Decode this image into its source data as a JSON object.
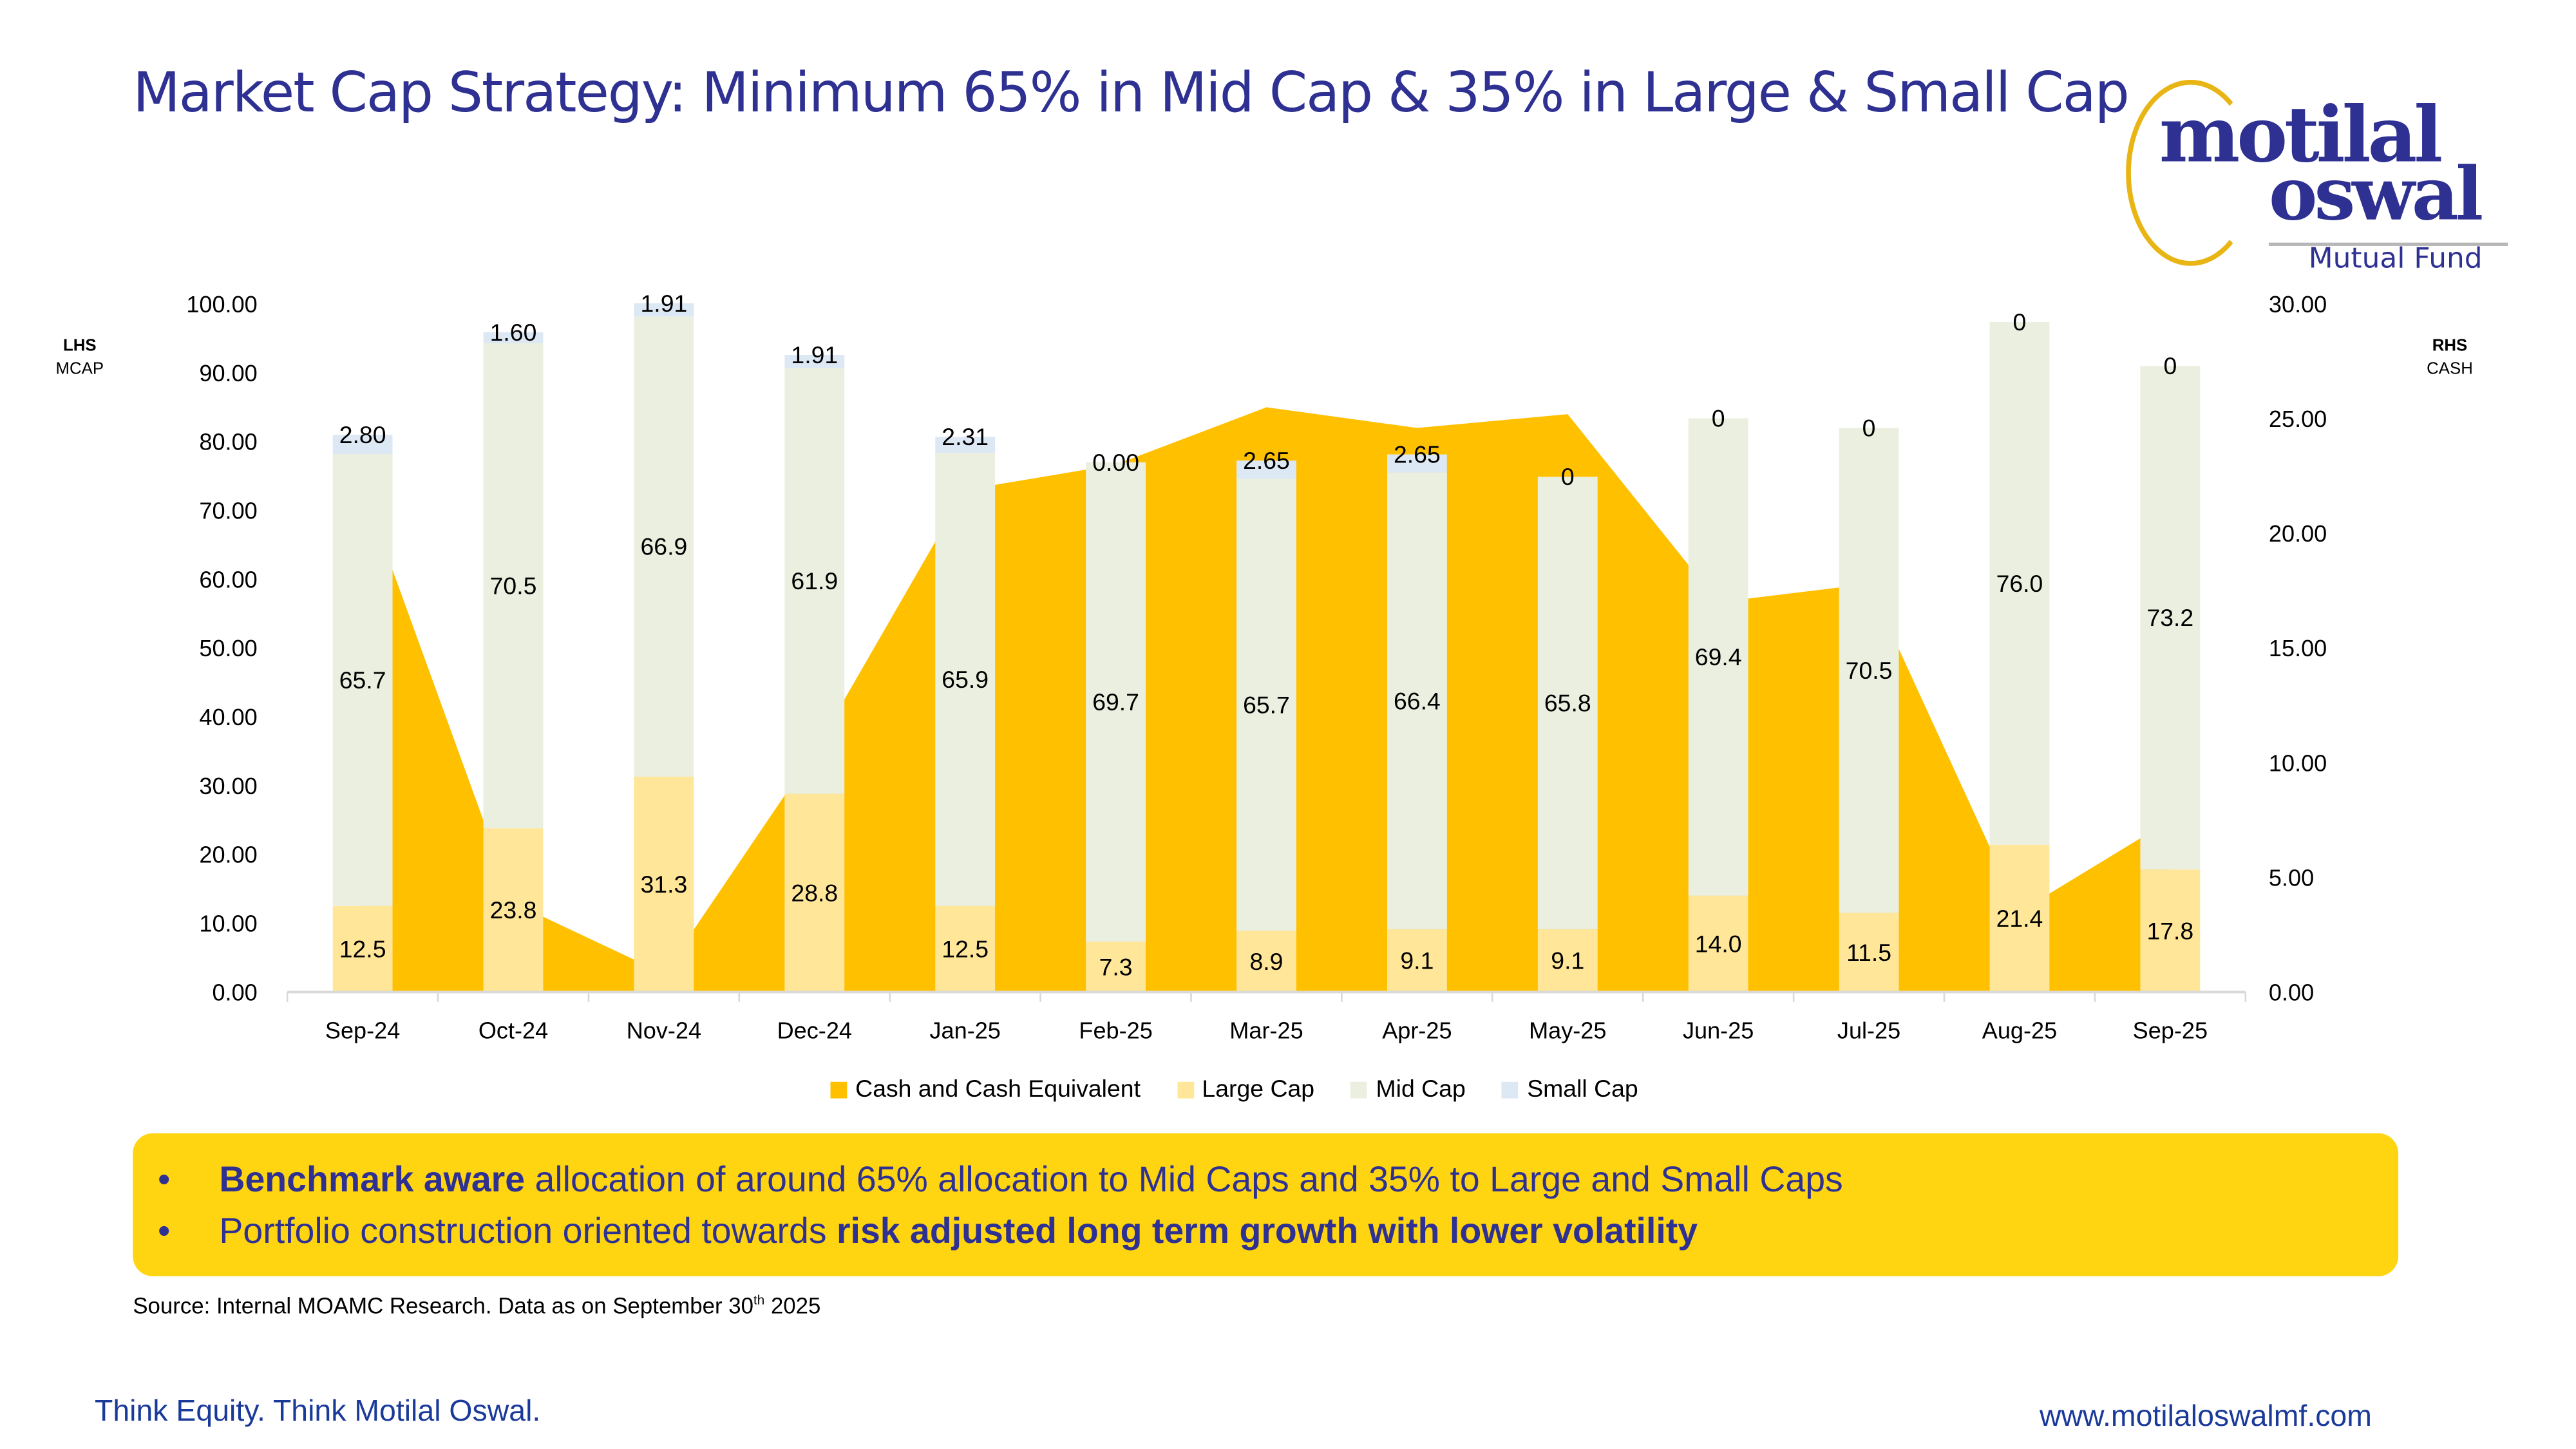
{
  "page": {
    "title": "Market Cap Strategy: Minimum 65% in Mid Cap & 35% in Large & Small Cap",
    "logo": {
      "line1": "motilal",
      "line2": "oswal",
      "line3": "Mutual Fund"
    },
    "lhs_caption": {
      "bold": "LHS",
      "text": "MCAP"
    },
    "rhs_caption": {
      "bold": "RHS",
      "text": "CASH"
    },
    "callout": {
      "bullet": "•",
      "items": [
        {
          "bold": "Benchmark aware",
          "text": " allocation of around 65% allocation to Mid Caps and 35% to Large and Small Caps"
        },
        {
          "text": "Portfolio construction oriented towards ",
          "bold": "risk adjusted long term growth with lower volatility"
        }
      ]
    },
    "source": {
      "text": "Source: Internal MOAMC Research. Data as on September 30",
      "sup": "th",
      "year": " 2025"
    },
    "footer": {
      "tagline": "Think Equity. Think Motilal Oswal.",
      "url": "www.motilaloswalmf.com"
    }
  },
  "colors": {
    "title": "#2e3192",
    "cash": "#ffc000",
    "large_cap": "#ffe699",
    "mid_cap": "#ebefdf",
    "small_cap": "#dde8f5",
    "callout_bg": "#ffd411",
    "axis": "#d9d9d9"
  },
  "chart_data": {
    "type": "bar",
    "stacked": true,
    "title": "",
    "categories": [
      "Sep-24",
      "Oct-24",
      "Nov-24",
      "Dec-24",
      "Jan-25",
      "Feb-25",
      "Mar-25",
      "Apr-25",
      "May-25",
      "Jun-25",
      "Jul-25",
      "Aug-25",
      "Sep-25"
    ],
    "series": [
      {
        "name": "Large Cap",
        "axis": "left",
        "type": "bar",
        "values": [
          12.5,
          23.8,
          31.3,
          28.8,
          12.5,
          7.3,
          8.9,
          9.1,
          9.1,
          14.0,
          11.5,
          21.4,
          17.8
        ],
        "labels": [
          "12.5",
          "23.8",
          "31.3",
          "28.8",
          "12.5",
          "7.3",
          "8.9",
          "9.1",
          "9.1",
          "14.0",
          "11.5",
          "21.4",
          "17.8"
        ]
      },
      {
        "name": "Mid Cap",
        "axis": "left",
        "type": "bar",
        "values": [
          65.7,
          70.5,
          66.9,
          61.9,
          65.9,
          69.7,
          65.7,
          66.4,
          65.8,
          69.4,
          70.5,
          76.0,
          73.2
        ],
        "labels": [
          "65.7",
          "70.5",
          "66.9",
          "61.9",
          "65.9",
          "69.7",
          "65.7",
          "66.4",
          "65.8",
          "69.4",
          "70.5",
          "76.0",
          "73.2"
        ]
      },
      {
        "name": "Small Cap",
        "axis": "left",
        "type": "bar",
        "values": [
          2.8,
          1.6,
          1.91,
          1.91,
          2.31,
          0.0,
          2.65,
          2.65,
          0,
          0,
          0,
          0,
          0
        ],
        "labels": [
          "2.80",
          "1.60",
          "1.91",
          "1.91",
          "2.31",
          "0.00",
          "2.65",
          "2.65",
          "0",
          "0",
          "0",
          "0",
          "0"
        ]
      },
      {
        "name": "Cash and Cash Equivalent",
        "axis": "right",
        "type": "area",
        "values": [
          22.0,
          3.9,
          0.8,
          10.5,
          21.9,
          23.0,
          25.5,
          24.6,
          25.2,
          17.0,
          17.8,
          3.5,
          7.5
        ]
      }
    ],
    "legend": [
      "Cash and Cash Equivalent",
      "Large Cap",
      "Mid Cap",
      "Small Cap"
    ],
    "legend_position": "bottom",
    "y_left": {
      "label": "LHS MCAP",
      "min": 0,
      "max": 100,
      "step": 10,
      "ticks": [
        "0.00",
        "10.00",
        "20.00",
        "30.00",
        "40.00",
        "50.00",
        "60.00",
        "70.00",
        "80.00",
        "90.00",
        "100.00"
      ]
    },
    "y_right": {
      "label": "RHS CASH",
      "min": 0,
      "max": 30,
      "step": 5,
      "ticks": [
        "0.00",
        "5.00",
        "10.00",
        "15.00",
        "20.00",
        "25.00",
        "30.00"
      ]
    },
    "grid": false
  }
}
